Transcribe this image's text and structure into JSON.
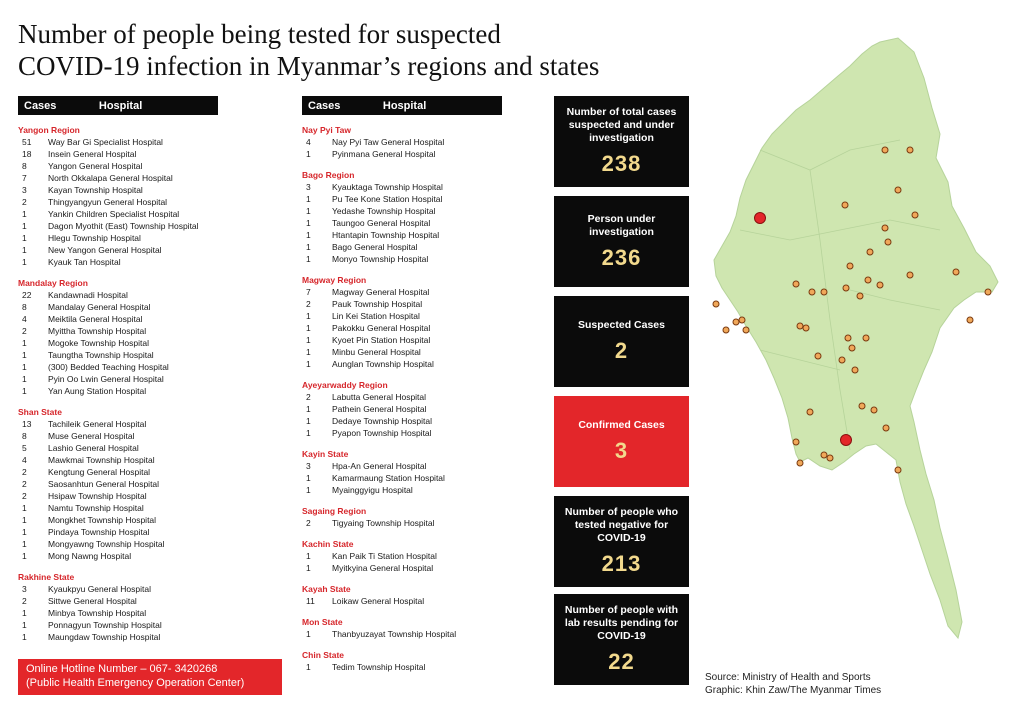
{
  "title": {
    "line1": "Number of people being tested for suspected",
    "line2": "COVID-19 infection in Myanmar’s regions and states"
  },
  "headers": {
    "cases": "Cases",
    "hospital": "Hospital"
  },
  "left_regions": [
    {
      "name": "Yangon Region",
      "rows": [
        {
          "n": "51",
          "h": "Way Bar Gi Specialist Hospital"
        },
        {
          "n": "18",
          "h": "Insein General Hospital"
        },
        {
          "n": "8",
          "h": "Yangon General Hospital"
        },
        {
          "n": "7",
          "h": "North Okkalapa General Hospital"
        },
        {
          "n": "3",
          "h": "Kayan Township Hospital"
        },
        {
          "n": "2",
          "h": "Thingyangyun General Hospital"
        },
        {
          "n": "1",
          "h": "Yankin Children Specialist Hospital"
        },
        {
          "n": "1",
          "h": "Dagon Myothit (East) Township Hospital"
        },
        {
          "n": "1",
          "h": "Hlegu Township Hospital"
        },
        {
          "n": "1",
          "h": "New Yangon General Hospital"
        },
        {
          "n": "1",
          "h": "Kyauk Tan  Hospital"
        }
      ]
    },
    {
      "name": "Mandalay Region",
      "rows": [
        {
          "n": "22",
          "h": "Kandawnadi Hospital"
        },
        {
          "n": "8",
          "h": "Mandalay General Hospital"
        },
        {
          "n": "4",
          "h": "Meiktila General Hospital"
        },
        {
          "n": "2",
          "h": "Myittha Township Hospital"
        },
        {
          "n": "1",
          "h": "Mogoke Township Hospital"
        },
        {
          "n": "1",
          "h": "Taungtha Township Hospital"
        },
        {
          "n": "1",
          "h": "(300) Bedded Teaching Hospital"
        },
        {
          "n": "1",
          "h": "Pyin Oo Lwin General Hospital"
        },
        {
          "n": "1",
          "h": "Yan Aung Station Hospital"
        }
      ]
    },
    {
      "name": "Shan State",
      "rows": [
        {
          "n": "13",
          "h": "Tachileik General Hospital"
        },
        {
          "n": "8",
          "h": "Muse General Hospital"
        },
        {
          "n": "5",
          "h": "Lashio General Hospital"
        },
        {
          "n": "4",
          "h": "Mawkmai Township Hospital"
        },
        {
          "n": "2",
          "h": "Kengtung General Hospital"
        },
        {
          "n": "2",
          "h": "Saosanhtun General Hospital"
        },
        {
          "n": "2",
          "h": "Hsipaw Township Hospital"
        },
        {
          "n": "1",
          "h": "Namtu Township Hospital"
        },
        {
          "n": "1",
          "h": "Mongkhet Township Hospital"
        },
        {
          "n": "1",
          "h": "Pindaya Township Hospital"
        },
        {
          "n": "1",
          "h": "Mongyawng Township Hospital"
        },
        {
          "n": "1",
          "h": "Mong Nawng Hospital"
        }
      ]
    },
    {
      "name": "Rakhine State",
      "rows": [
        {
          "n": "3",
          "h": "Kyaukpyu General Hospital"
        },
        {
          "n": "2",
          "h": "Sittwe General Hospital"
        },
        {
          "n": "1",
          "h": "Minbya Township Hospital"
        },
        {
          "n": "1",
          "h": "Ponnagyun Township Hospital"
        },
        {
          "n": "1",
          "h": "Maungdaw Township Hospital"
        }
      ]
    }
  ],
  "mid_regions": [
    {
      "name": "Nay Pyi Taw",
      "rows": [
        {
          "n": "4",
          "h": "Nay Pyi Taw General Hospital"
        },
        {
          "n": "1",
          "h": "Pyinmana General Hospital"
        }
      ]
    },
    {
      "name": "Bago Region",
      "rows": [
        {
          "n": "3",
          "h": "Kyauktaga Township Hospital"
        },
        {
          "n": "1",
          "h": "Pu Tee Kone Station Hospital"
        },
        {
          "n": "1",
          "h": "Yedashe Township Hospital"
        },
        {
          "n": "1",
          "h": "Taungoo General Hospital"
        },
        {
          "n": "1",
          "h": "Htantapin Township Hospital"
        },
        {
          "n": "1",
          "h": "Bago General Hospital"
        },
        {
          "n": "1",
          "h": "Monyo Township Hospital"
        }
      ]
    },
    {
      "name": "Magway Region",
      "rows": [
        {
          "n": "7",
          "h": "Magway General Hospital"
        },
        {
          "n": "2",
          "h": "Pauk Township Hospital"
        },
        {
          "n": "1",
          "h": "Lin Kei Station Hospital"
        },
        {
          "n": "1",
          "h": "Pakokku General Hospital"
        },
        {
          "n": "1",
          "h": "Kyoet Pin Station Hospital"
        },
        {
          "n": "1",
          "h": "Minbu General Hospital"
        },
        {
          "n": "1",
          "h": "Aunglan Township Hospital"
        }
      ]
    },
    {
      "name": "Ayeyarwaddy Region",
      "rows": [
        {
          "n": "2",
          "h": "Labutta General Hospital"
        },
        {
          "n": "1",
          "h": "Pathein General Hospital"
        },
        {
          "n": "1",
          "h": "Dedaye Township Hospital"
        },
        {
          "n": "1",
          "h": "Pyapon Township Hospital"
        }
      ]
    },
    {
      "name": "Kayin State",
      "rows": [
        {
          "n": "3",
          "h": "Hpa-An General Hospital"
        },
        {
          "n": "1",
          "h": "Kamarmaung Station Hospital"
        },
        {
          "n": "1",
          "h": "Myainggyigu Hospital"
        }
      ]
    },
    {
      "name": "Sagaing Region",
      "rows": [
        {
          "n": "2",
          "h": "Tigyaing Township Hospital"
        }
      ]
    },
    {
      "name": "Kachin State",
      "rows": [
        {
          "n": "1",
          "h": "Kan Paik Ti Station Hospital"
        },
        {
          "n": "1",
          "h": "Myitkyina General Hospital"
        }
      ]
    },
    {
      "name": "Kayah State",
      "rows": [
        {
          "n": "11",
          "h": "Loikaw General Hospital"
        }
      ]
    },
    {
      "name": "Mon State",
      "rows": [
        {
          "n": "1",
          "h": "Thanbyuzayat Township Hospital"
        }
      ]
    },
    {
      "name": "Chin State",
      "rows": [
        {
          "n": "1",
          "h": "Tedim Township Hospital"
        }
      ]
    }
  ],
  "stats": [
    {
      "label": "Number of total cases suspected and under investigation",
      "value": "238",
      "color": "#0b0b0b"
    },
    {
      "label": "Person under investigation",
      "value": "236",
      "color": "#0b0b0b"
    },
    {
      "label": "Suspected Cases",
      "value": "2",
      "color": "#0b0b0b"
    },
    {
      "label": "Confirmed Cases",
      "value": "3",
      "color": "#e3262a"
    },
    {
      "label": "Number of people who tested negative for COVID-19",
      "value": "213",
      "color": "#0b0b0b"
    },
    {
      "label": "Number of people with lab results pending for COVID-19",
      "value": "22",
      "color": "#0b0b0b"
    }
  ],
  "hotline": {
    "line1": "Online Hotline Number – 067- 3420268",
    "line2": "(Public Health Emergency Operation Center)"
  },
  "source": {
    "line1": "Source: Ministry of Health and Sports",
    "line2": "Graphic: Khin Zaw/The Myanmar Times"
  },
  "colors": {
    "accent_red": "#e3262a",
    "value_gold": "#f2d98d",
    "map_green": "#cfe6b0"
  }
}
